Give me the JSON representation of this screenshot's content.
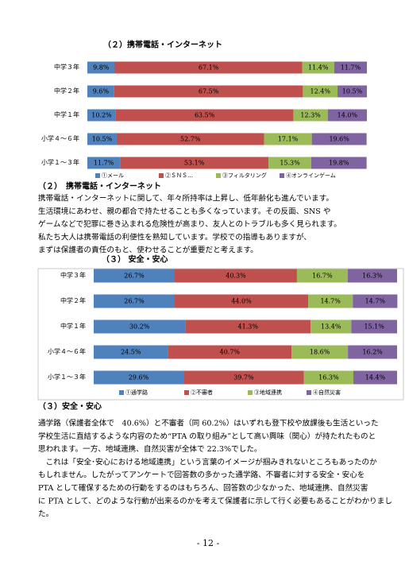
{
  "chart_data": [
    {
      "type": "bar",
      "orientation": "horizontal",
      "stacked": true,
      "title": "（２）携帯電話・インターネット",
      "categories": [
        "中学３年",
        "中学２年",
        "中学１年",
        "小学４～６年",
        "小学１～３年"
      ],
      "xlim": [
        0,
        100
      ],
      "series": [
        {
          "name": "①メール",
          "color": "#4f81bd",
          "values": [
            9.8,
            9.6,
            10.2,
            10.5,
            11.7
          ],
          "value_labels": [
            "9.8%",
            "9.6%",
            "10.2%",
            "10.5%",
            "11.7%"
          ]
        },
        {
          "name": "②ＳＮＳ…",
          "color": "#c0504d",
          "values": [
            67.1,
            67.5,
            63.5,
            52.7,
            53.1
          ],
          "value_labels": [
            "67.1%",
            "67.5%",
            "63.5%",
            "52.7%",
            "53.1%"
          ]
        },
        {
          "name": "③フィルタリング",
          "color": "#9bbb59",
          "values": [
            11.4,
            12.4,
            12.3,
            17.1,
            15.3
          ],
          "value_labels": [
            "11.4%",
            "12.4%",
            "12.3%",
            "17.1%",
            "15.3%"
          ]
        },
        {
          "name": "④オンラインゲーム",
          "color": "#8064a2",
          "values": [
            11.7,
            10.5,
            14.0,
            19.6,
            19.8
          ],
          "value_labels": [
            "11.7%",
            "10.5%",
            "14.0%",
            "19.6%",
            "19.8%"
          ]
        }
      ]
    },
    {
      "type": "bar",
      "orientation": "horizontal",
      "stacked": true,
      "title": "（３） 安全・安心",
      "categories": [
        "中学３年",
        "中学２年",
        "中学１年",
        "小学４～６年",
        "小学１～３年"
      ],
      "xlim": [
        0,
        100
      ],
      "series": [
        {
          "name": "①通学路",
          "color": "#4f81bd",
          "values": [
            26.7,
            26.7,
            30.2,
            24.5,
            29.6
          ],
          "value_labels": [
            "26.7%",
            "26.7%",
            "30.2%",
            "24.5%",
            "29.6%"
          ]
        },
        {
          "name": "②不審者",
          "color": "#c0504d",
          "values": [
            40.3,
            44.0,
            41.3,
            40.7,
            39.7
          ],
          "value_labels": [
            "40.3%",
            "44.0%",
            "41.3%",
            "40.7%",
            "39.7%"
          ]
        },
        {
          "name": "③地域連携",
          "color": "#9bbb59",
          "values": [
            16.7,
            14.7,
            13.4,
            18.6,
            16.3
          ],
          "value_labels": [
            "16.7%",
            "14.7%",
            "13.4%",
            "18.6%",
            "16.3%"
          ]
        },
        {
          "name": "④自然災害",
          "color": "#8064a2",
          "values": [
            16.3,
            14.7,
            15.1,
            16.2,
            14.4
          ],
          "value_labels": [
            "16.3%",
            "14.7%",
            "15.1%",
            "16.2%",
            "14.4%"
          ]
        }
      ]
    }
  ],
  "sections": [
    {
      "heading": "（２）　携帯電話・インターネット",
      "lines": [
        "携帯電話・インターネットに関して、年々所持率は上昇し、低年齢化も進んでいます。",
        "生活環境にあわせ、親の都合で持たせることも多くなっています。その反面、SNS や",
        "ゲームなどで犯罪に巻き込まれる危険性が高まり、友人とのトラブルも多く見られます。",
        "私たち大人は携帯電話の利便性を熟知しています。学校での指導もありますが、",
        "まずは保護者の責任のもと、使わせることが重要だと考えます。"
      ]
    },
    {
      "heading": "（３）安全・安心",
      "lines": [
        "通学路（保護者全体で　40.6%）と不審者（同 60.2%）はいずれも登下校や放課後も生活といった",
        "学校生活に直結するような内容のため“PTA の取り組み”として高い興味（関心）が持たれたものと",
        "思われます。一方、地域連携、自然災害が全体で 22.3%でした。",
        "　これは「安全･安心における地域連携」という言葉のイメージが掴みきれないところもあったのか",
        "もしれません。したがってアンケートで回答数の多かった通学路、不審者に対する安全・安心を",
        "PTA として確保するための行動をするのはもちろん、回答数の少なかった、地域連携、自然災害",
        "に PTA として、どのような行動が出来るのかを考えて保護者に示して行く必要もあることがわかりまし",
        "た。"
      ]
    }
  ],
  "page_number": "- 12 -"
}
